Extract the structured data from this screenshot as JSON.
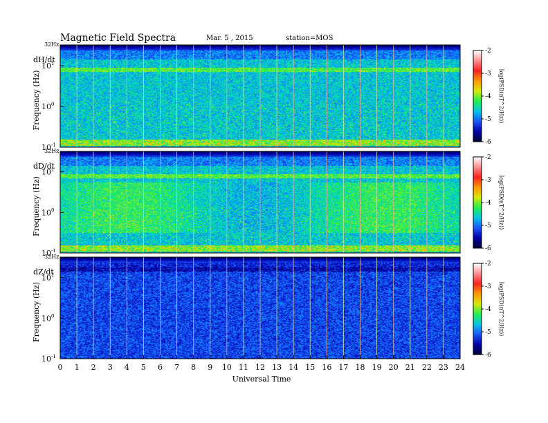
{
  "header": {
    "title": "Magnetic  Field  Spectra",
    "date": "Mar. 5  , 2015",
    "station": "station=MOS"
  },
  "chart_data": {
    "type": "heatmap",
    "xlabel": "Universal Time",
    "xlim": [
      0,
      24
    ],
    "x_ticks": [
      "0",
      "1",
      "2",
      "3",
      "4",
      "5",
      "6",
      "7",
      "8",
      "9",
      "10",
      "11",
      "12",
      "13",
      "14",
      "15",
      "16",
      "17",
      "18",
      "19",
      "20",
      "21",
      "22",
      "23",
      "24"
    ],
    "y_scale": "log",
    "ylim_hz": [
      0.1,
      32
    ],
    "ylabel": "Frequency  (Hz)",
    "colorbar": {
      "label": "log(PSD(nT^2/Hz))",
      "range": [
        -6,
        -2
      ],
      "ticks": [
        "-2",
        "-3",
        "-4",
        "-5",
        "-6"
      ],
      "colors": [
        "#000033",
        "#0000aa",
        "#1a55ff",
        "#00c8e6",
        "#20f050",
        "#d8e800",
        "#ff9900",
        "#ff2020",
        "#ff9090",
        "#ffffff"
      ]
    },
    "panels": [
      {
        "component": "dH/dt",
        "top_label": "32Hz",
        "y_ticks": [
          {
            "base": "10",
            "exp": "1"
          },
          {
            "base": "10",
            "exp": "0"
          },
          {
            "base": "10",
            "exp": "-1"
          }
        ],
        "intensity_ranking": "high"
      },
      {
        "component": "dD/dt",
        "top_label": "32Hz",
        "y_ticks": [
          {
            "base": "10",
            "exp": "1"
          },
          {
            "base": "10",
            "exp": "0"
          },
          {
            "base": "10",
            "exp": "-1"
          }
        ],
        "intensity_ranking": "high"
      },
      {
        "component": "dZ/dt",
        "top_label": "32Hz",
        "y_ticks": [
          {
            "base": "10",
            "exp": "1"
          },
          {
            "base": "10",
            "exp": "0"
          },
          {
            "base": "10",
            "exp": "-1"
          }
        ],
        "intensity_ranking": "low"
      }
    ]
  }
}
